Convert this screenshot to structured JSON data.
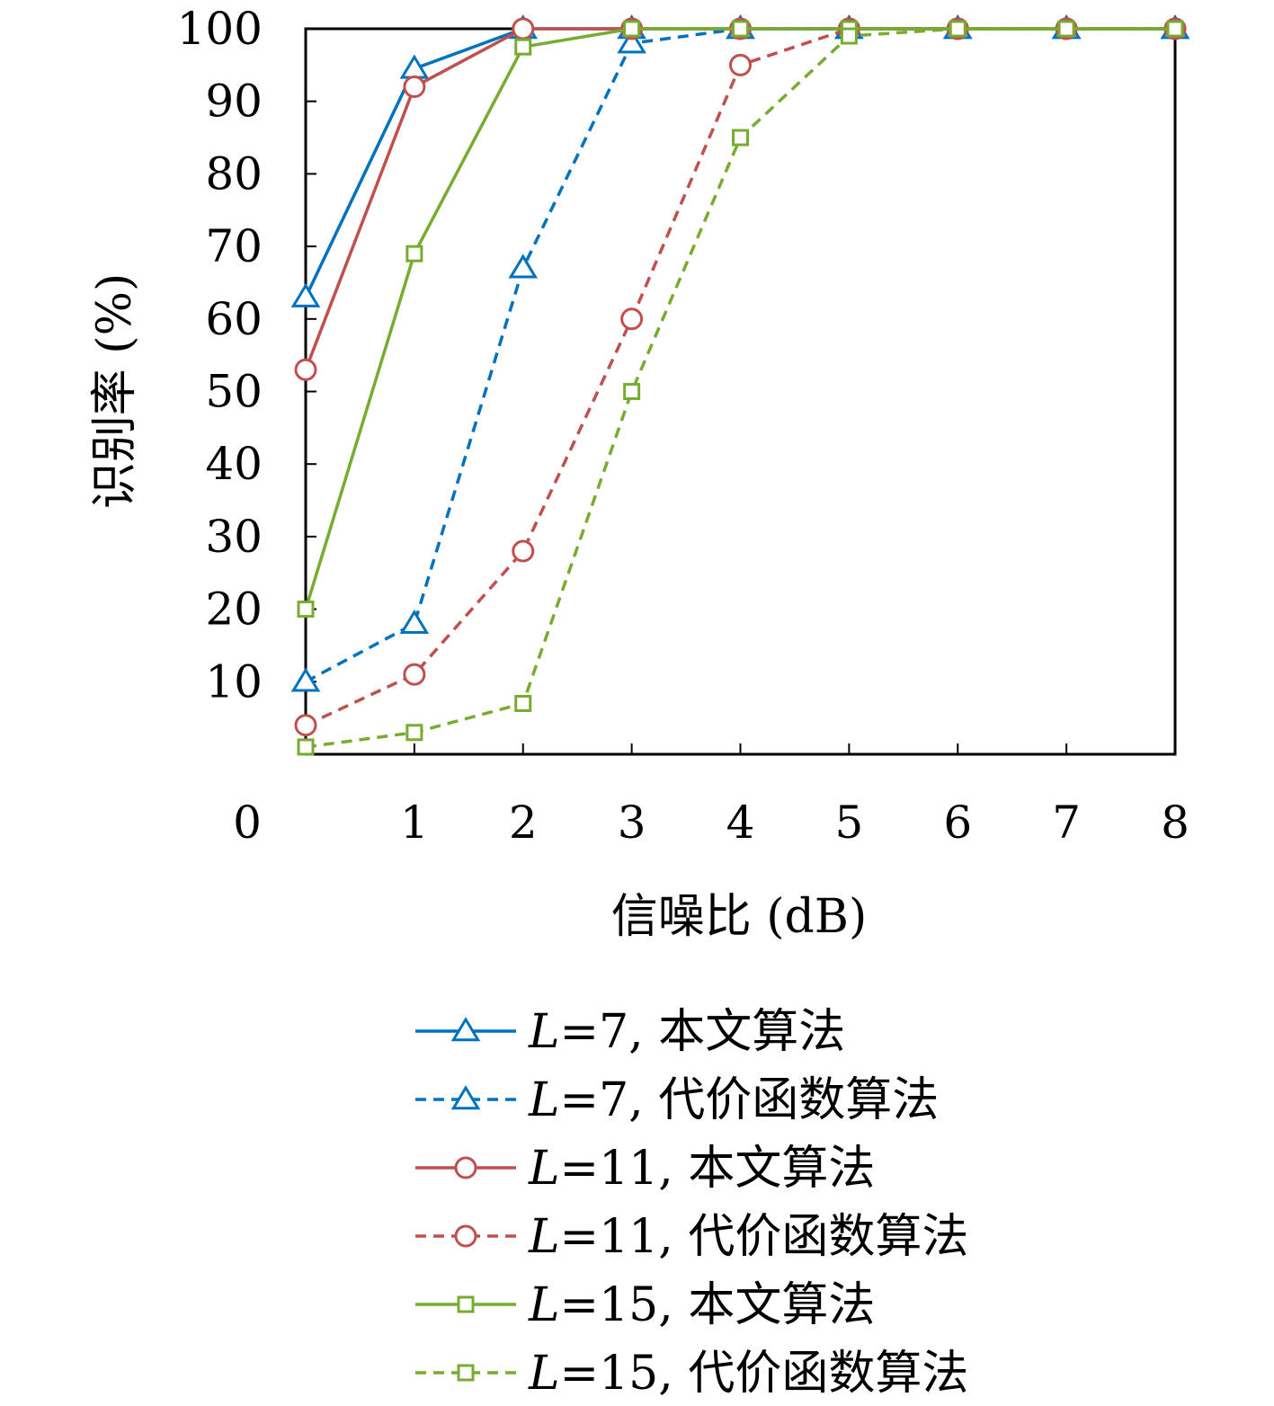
{
  "chart_data": {
    "type": "line",
    "title": "",
    "xlabel": "信噪比 (dB)",
    "ylabel": "识别率 (%)",
    "xlim": [
      0,
      8
    ],
    "ylim": [
      0,
      100
    ],
    "x_ticks": [
      "0",
      "1",
      "2",
      "3",
      "4",
      "5",
      "6",
      "7",
      "8"
    ],
    "y_ticks": [
      "10",
      "20",
      "30",
      "40",
      "50",
      "60",
      "70",
      "80",
      "90",
      "100"
    ],
    "grid": false,
    "legend_position": "bottom",
    "x": [
      0,
      1,
      2,
      3,
      4,
      5,
      6,
      7,
      8
    ],
    "series": [
      {
        "name": "L=7, 本文算法",
        "name_var": "L",
        "name_rest": "=7, 本文算法",
        "color": "#0072BD",
        "dash": false,
        "marker": "triangle",
        "values": [
          63,
          94.5,
          100,
          100,
          100,
          100,
          100,
          100,
          100
        ]
      },
      {
        "name": "L=7, 代价函数算法",
        "name_var": "L",
        "name_rest": "=7, 代价函数算法",
        "color": "#0072BD",
        "dash": true,
        "marker": "triangle",
        "values": [
          10,
          18,
          67,
          98,
          100,
          100,
          100,
          100,
          100
        ]
      },
      {
        "name": "L=11, 本文算法",
        "name_var": "L",
        "name_rest": "=11, 本文算法",
        "color": "#C0504D",
        "dash": false,
        "marker": "circle",
        "values": [
          53,
          92,
          100,
          100,
          100,
          100,
          100,
          100,
          100
        ]
      },
      {
        "name": "L=11, 代价函数算法",
        "name_var": "L",
        "name_rest": "=11, 代价函数算法",
        "color": "#C0504D",
        "dash": true,
        "marker": "circle",
        "values": [
          4,
          11,
          28,
          60,
          95,
          100,
          100,
          100,
          100
        ]
      },
      {
        "name": "L=15, 本文算法",
        "name_var": "L",
        "name_rest": "=15, 本文算法",
        "color": "#77AC30",
        "dash": false,
        "marker": "square",
        "values": [
          20,
          69,
          97.5,
          100,
          100,
          100,
          100,
          100,
          100
        ]
      },
      {
        "name": "L=15, 代价函数算法",
        "name_var": "L",
        "name_rest": "=15, 代价函数算法",
        "color": "#77AC30",
        "dash": true,
        "marker": "square",
        "values": [
          1,
          3,
          7,
          50,
          85,
          99,
          100,
          100,
          100
        ]
      }
    ]
  }
}
